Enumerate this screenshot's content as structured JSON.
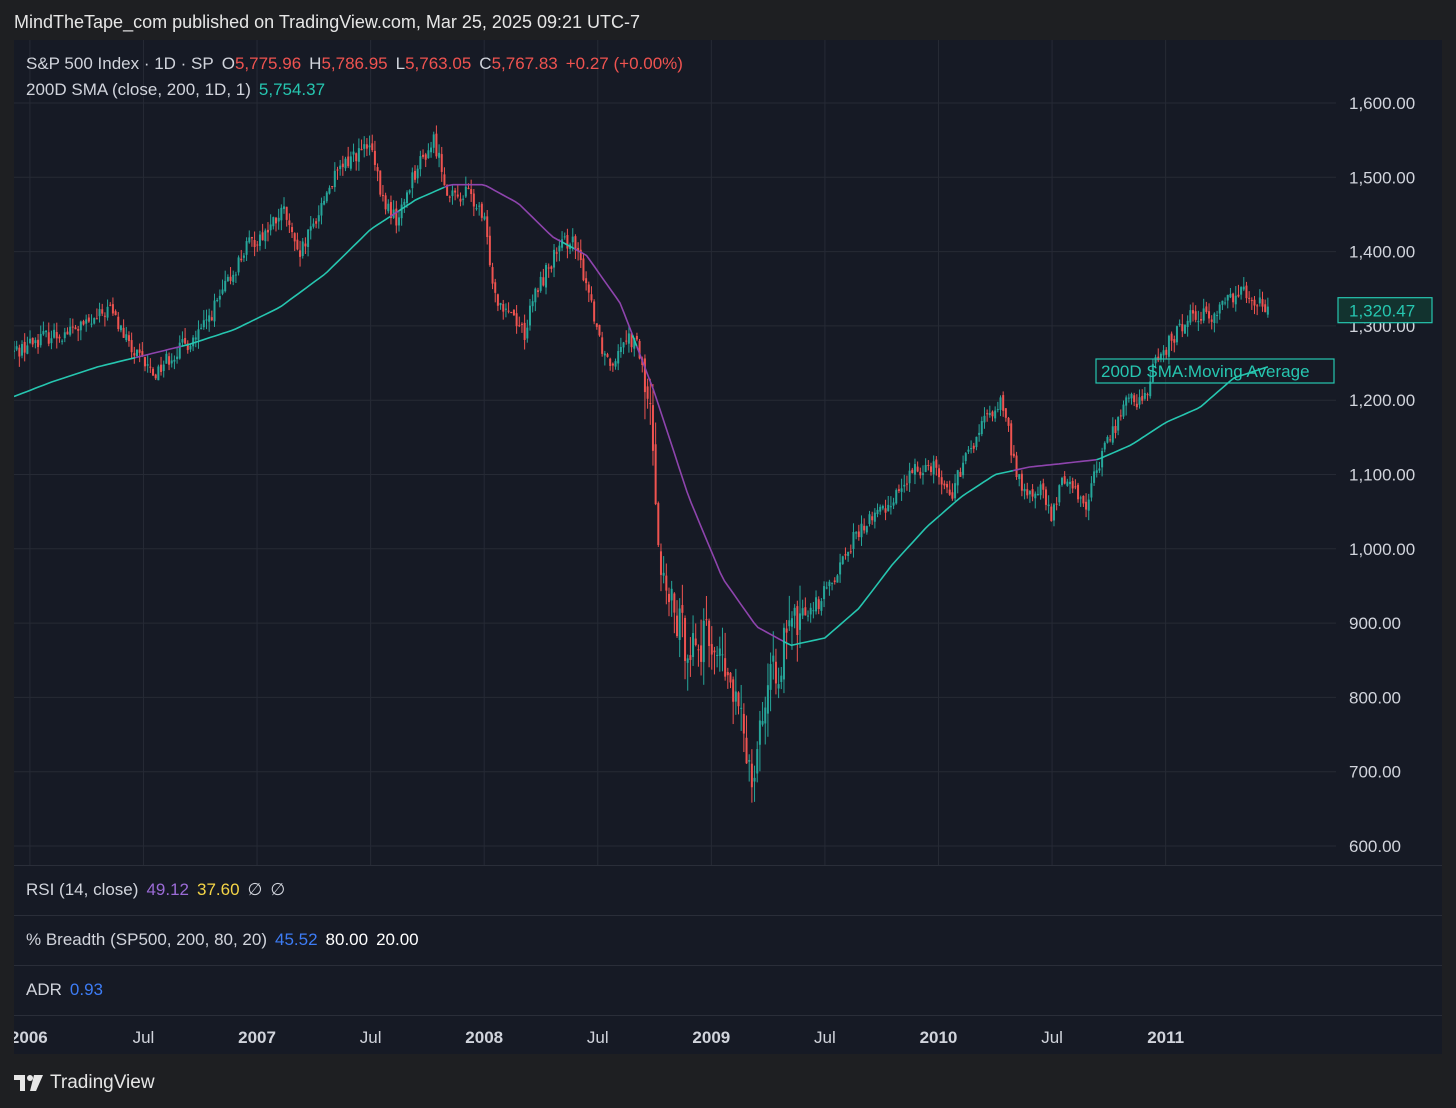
{
  "header": {
    "published_text": "MindTheTape_com published on TradingView.com, Mar 25, 2025 09:21 UTC-7"
  },
  "legend": {
    "symbol": "S&P 500 Index · 1D · SP",
    "o_label": "O",
    "o_value": "5,775.96",
    "h_label": "H",
    "h_value": "5,786.95",
    "l_label": "L",
    "l_value": "5,763.05",
    "c_label": "C",
    "c_value": "5,767.83",
    "change": "+0.27 (+0.00%)",
    "sma_label": "200D SMA (close, 200, 1D, 1)",
    "sma_value": "5,754.37"
  },
  "panes": {
    "rsi": {
      "label": "RSI (14, close)",
      "v1": "49.12",
      "v2": "37.60",
      "v3": "∅",
      "v4": "∅"
    },
    "breadth": {
      "label": "% Breadth (SP500, 200, 80, 20)",
      "v1": "45.52",
      "v2": "80.00",
      "v3": "20.00"
    },
    "adr": {
      "label": "ADR",
      "v1": "0.93"
    }
  },
  "footer": {
    "brand": "TradingView",
    "logo_icon": "tradingview-logo-icon"
  },
  "colors": {
    "up": "#26a69a",
    "down": "#ef5350",
    "sma_above": "#26c6b0",
    "sma_below": "#8e44ad",
    "grid": "#262a35",
    "axis_text": "#d1d4dc",
    "background": "#161a25"
  },
  "chart_data": {
    "type": "candlestick",
    "title": "S&P 500 Index · 1D · SP",
    "ylim": [
      580,
      1660
    ],
    "y_ticks": [
      "1,600.00",
      "1,500.00",
      "1,400.00",
      "1,300.00",
      "1,200.00",
      "1,100.00",
      "1,000.00",
      "900.00",
      "800.00",
      "700.00",
      "600.00"
    ],
    "y_tick_values": [
      1600,
      1500,
      1400,
      1300,
      1200,
      1100,
      1000,
      900,
      800,
      700,
      600
    ],
    "x_ticks": [
      {
        "label": "2006",
        "t": 2006.0,
        "bold": true
      },
      {
        "label": "Jul",
        "t": 2006.5,
        "bold": false
      },
      {
        "label": "2007",
        "t": 2007.0,
        "bold": true
      },
      {
        "label": "Jul",
        "t": 2007.5,
        "bold": false
      },
      {
        "label": "2008",
        "t": 2008.0,
        "bold": true
      },
      {
        "label": "Jul",
        "t": 2008.5,
        "bold": false
      },
      {
        "label": "2009",
        "t": 2009.0,
        "bold": true
      },
      {
        "label": "Jul",
        "t": 2009.5,
        "bold": false
      },
      {
        "label": "2010",
        "t": 2010.0,
        "bold": true
      },
      {
        "label": "Jul",
        "t": 2010.5,
        "bold": false
      },
      {
        "label": "2011",
        "t": 2011.0,
        "bold": true
      }
    ],
    "x_range": [
      2005.93,
      2011.75
    ],
    "last_price_label": "1,320.47",
    "last_price": 1320.47,
    "annotation": "200D SMA:Moving Average",
    "price_path": [
      [
        2005.93,
        1265
      ],
      [
        2006.05,
        1285
      ],
      [
        2006.15,
        1290
      ],
      [
        2006.28,
        1305
      ],
      [
        2006.35,
        1325
      ],
      [
        2006.45,
        1265
      ],
      [
        2006.55,
        1235
      ],
      [
        2006.6,
        1255
      ],
      [
        2006.75,
        1290
      ],
      [
        2006.85,
        1345
      ],
      [
        2006.95,
        1405
      ],
      [
        2007.05,
        1430
      ],
      [
        2007.12,
        1455
      ],
      [
        2007.18,
        1390
      ],
      [
        2007.22,
        1415
      ],
      [
        2007.32,
        1490
      ],
      [
        2007.42,
        1530
      ],
      [
        2007.5,
        1540
      ],
      [
        2007.55,
        1470
      ],
      [
        2007.62,
        1440
      ],
      [
        2007.68,
        1500
      ],
      [
        2007.78,
        1550
      ],
      [
        2007.85,
        1470
      ],
      [
        2007.93,
        1480
      ],
      [
        2008.0,
        1440
      ],
      [
        2008.05,
        1340
      ],
      [
        2008.12,
        1320
      ],
      [
        2008.18,
        1290
      ],
      [
        2008.22,
        1340
      ],
      [
        2008.3,
        1390
      ],
      [
        2008.38,
        1420
      ],
      [
        2008.45,
        1360
      ],
      [
        2008.52,
        1270
      ],
      [
        2008.56,
        1250
      ],
      [
        2008.62,
        1290
      ],
      [
        2008.68,
        1270
      ],
      [
        2008.74,
        1160
      ],
      [
        2008.78,
        960
      ],
      [
        2008.82,
        920
      ],
      [
        2008.88,
        880
      ],
      [
        2008.95,
        870
      ],
      [
        2009.0,
        880
      ],
      [
        2009.05,
        840
      ],
      [
        2009.1,
        800
      ],
      [
        2009.15,
        740
      ],
      [
        2009.18,
        700
      ],
      [
        2009.22,
        780
      ],
      [
        2009.3,
        850
      ],
      [
        2009.35,
        890
      ],
      [
        2009.42,
        920
      ],
      [
        2009.48,
        930
      ],
      [
        2009.55,
        970
      ],
      [
        2009.62,
        1010
      ],
      [
        2009.7,
        1040
      ],
      [
        2009.78,
        1060
      ],
      [
        2009.85,
        1090
      ],
      [
        2009.92,
        1110
      ],
      [
        2009.98,
        1115
      ],
      [
        2010.05,
        1070
      ],
      [
        2010.12,
        1120
      ],
      [
        2010.2,
        1170
      ],
      [
        2010.28,
        1200
      ],
      [
        2010.33,
        1120
      ],
      [
        2010.38,
        1070
      ],
      [
        2010.45,
        1080
      ],
      [
        2010.5,
        1040
      ],
      [
        2010.55,
        1100
      ],
      [
        2010.6,
        1080
      ],
      [
        2010.65,
        1060
      ],
      [
        2010.72,
        1130
      ],
      [
        2010.8,
        1180
      ],
      [
        2010.85,
        1210
      ],
      [
        2010.9,
        1190
      ],
      [
        2010.95,
        1250
      ],
      [
        2011.05,
        1290
      ],
      [
        2011.12,
        1320
      ],
      [
        2011.2,
        1310
      ],
      [
        2011.28,
        1340
      ],
      [
        2011.35,
        1350
      ],
      [
        2011.4,
        1335
      ],
      [
        2011.45,
        1320
      ]
    ],
    "sma_path": [
      [
        2005.93,
        1205
      ],
      [
        2006.1,
        1225
      ],
      [
        2006.3,
        1245
      ],
      [
        2006.5,
        1260
      ],
      [
        2006.7,
        1275
      ],
      [
        2006.9,
        1295
      ],
      [
        2007.1,
        1325
      ],
      [
        2007.3,
        1370
      ],
      [
        2007.5,
        1430
      ],
      [
        2007.7,
        1470
      ],
      [
        2007.85,
        1490
      ],
      [
        2008.0,
        1490
      ],
      [
        2008.15,
        1465
      ],
      [
        2008.3,
        1420
      ],
      [
        2008.45,
        1395
      ],
      [
        2008.6,
        1330
      ],
      [
        2008.75,
        1210
      ],
      [
        2008.9,
        1070
      ],
      [
        2009.05,
        960
      ],
      [
        2009.2,
        895
      ],
      [
        2009.35,
        870
      ],
      [
        2009.5,
        880
      ],
      [
        2009.65,
        920
      ],
      [
        2009.8,
        980
      ],
      [
        2009.95,
        1030
      ],
      [
        2010.1,
        1070
      ],
      [
        2010.25,
        1100
      ],
      [
        2010.4,
        1110
      ],
      [
        2010.55,
        1115
      ],
      [
        2010.7,
        1120
      ],
      [
        2010.85,
        1140
      ],
      [
        2011.0,
        1170
      ],
      [
        2011.15,
        1190
      ],
      [
        2011.3,
        1230
      ],
      [
        2011.45,
        1245
      ]
    ],
    "panes": [
      "RSI (14, close)",
      "% Breadth (SP500, 200, 80, 20)",
      "ADR"
    ]
  }
}
